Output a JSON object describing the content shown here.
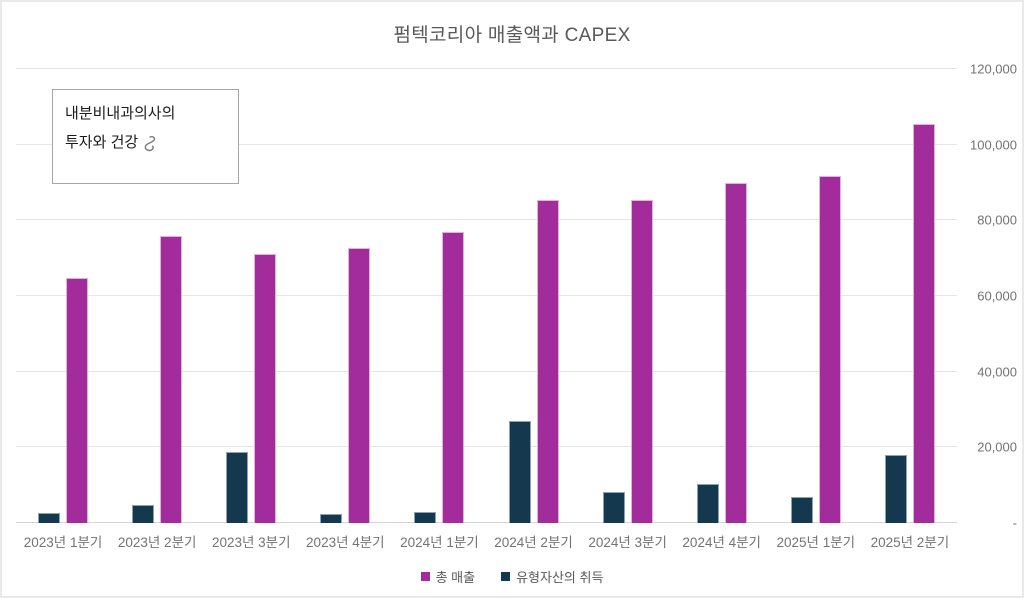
{
  "window": {
    "background": "#ffffff",
    "border_color": "#e9e9e9"
  },
  "annotation": {
    "line1": "내분비내과의사의",
    "line2": "투자와 건강",
    "icon": "snake-icon"
  },
  "chart_data": {
    "type": "bar",
    "title": "펌텍코리아 매출액과 CAPEX",
    "categories": [
      "2023년 1분기",
      "2023년 2분기",
      "2023년 3분기",
      "2023년 4분기",
      "2024년 1분기",
      "2024년 2분기",
      "2024년 3분기",
      "2024년 4분기",
      "2025년 1분기",
      "2025년 2분기"
    ],
    "series": [
      {
        "key": "revenue",
        "name": "총 매출",
        "color": "#A32C9C",
        "border_color": "#DFB4DA",
        "values": [
          64800,
          75900,
          71100,
          72700,
          76900,
          85500,
          85500,
          89900,
          91700,
          105400
        ]
      },
      {
        "key": "capex",
        "name": "유형자산의 취득",
        "color": "#14384E",
        "border_color": "#8AA2B1",
        "values": [
          2600,
          4800,
          18800,
          2500,
          2900,
          27000,
          8200,
          10400,
          6800,
          17900
        ]
      }
    ],
    "group_order_indices": [
      1,
      0
    ],
    "xlabel": "",
    "ylabel": "",
    "ylim": [
      0,
      120000
    ],
    "ytick_values": [
      0,
      20000,
      40000,
      60000,
      80000,
      100000,
      120000
    ],
    "ytick_labels": [
      "-",
      "20,000",
      "40,000",
      "60,000",
      "80,000",
      "100,000",
      "120,000"
    ],
    "y_axis_side": "right",
    "grid": true,
    "legend_position": "bottom"
  }
}
